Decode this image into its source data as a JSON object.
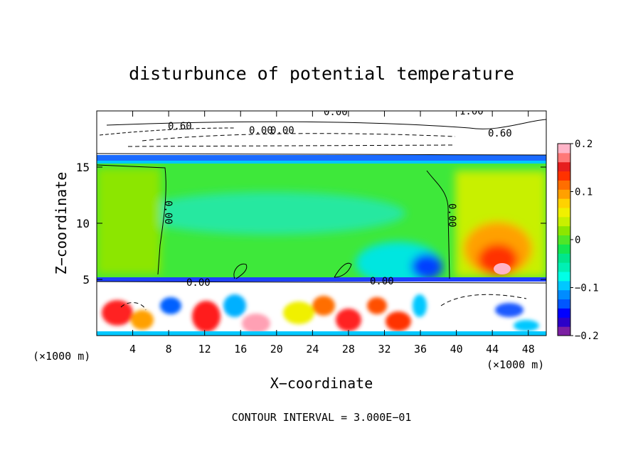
{
  "chart_data": {
    "type": "heatmap",
    "title": "disturbunce of potential temperature",
    "xlabel": "X−coordinate",
    "ylabel": "Z−coordinate",
    "x_unit_left": "(×1000 m)",
    "x_unit_right": "(×1000 m)",
    "xlim": [
      0,
      50
    ],
    "ylim": [
      0,
      20
    ],
    "x_ticks": [
      4,
      8,
      12,
      16,
      20,
      24,
      28,
      32,
      36,
      40,
      44,
      48
    ],
    "y_ticks": [
      5,
      10,
      15
    ],
    "colorbar": {
      "vmin": -0.2,
      "vmax": 0.2,
      "tick_values": [
        -0.2,
        -0.1,
        0,
        0.1,
        0.2
      ],
      "tick_labels": [
        "−0.2",
        "−0.1",
        "0",
        "0.1",
        "0.2"
      ],
      "colors": [
        "#7b1fa2",
        "#2b00c8",
        "#0000ff",
        "#0057ff",
        "#008cff",
        "#00c8ff",
        "#00ffe6",
        "#00f0b4",
        "#00e68c",
        "#14e650",
        "#50e628",
        "#8ce600",
        "#c8f000",
        "#f0f000",
        "#ffd200",
        "#ffa000",
        "#ff6e00",
        "#ff3200",
        "#e61e1e",
        "#ff7878",
        "#ffb4c8"
      ]
    },
    "contour_labels": [
      "0.00",
      "0.00",
      "0.00",
      "0.00",
      "0.00",
      "0.00",
      "1.00",
      "0.60",
      "0.60",
      "0.00"
    ],
    "footer": "CONTOUR INTERVAL = 3.000E−01"
  }
}
